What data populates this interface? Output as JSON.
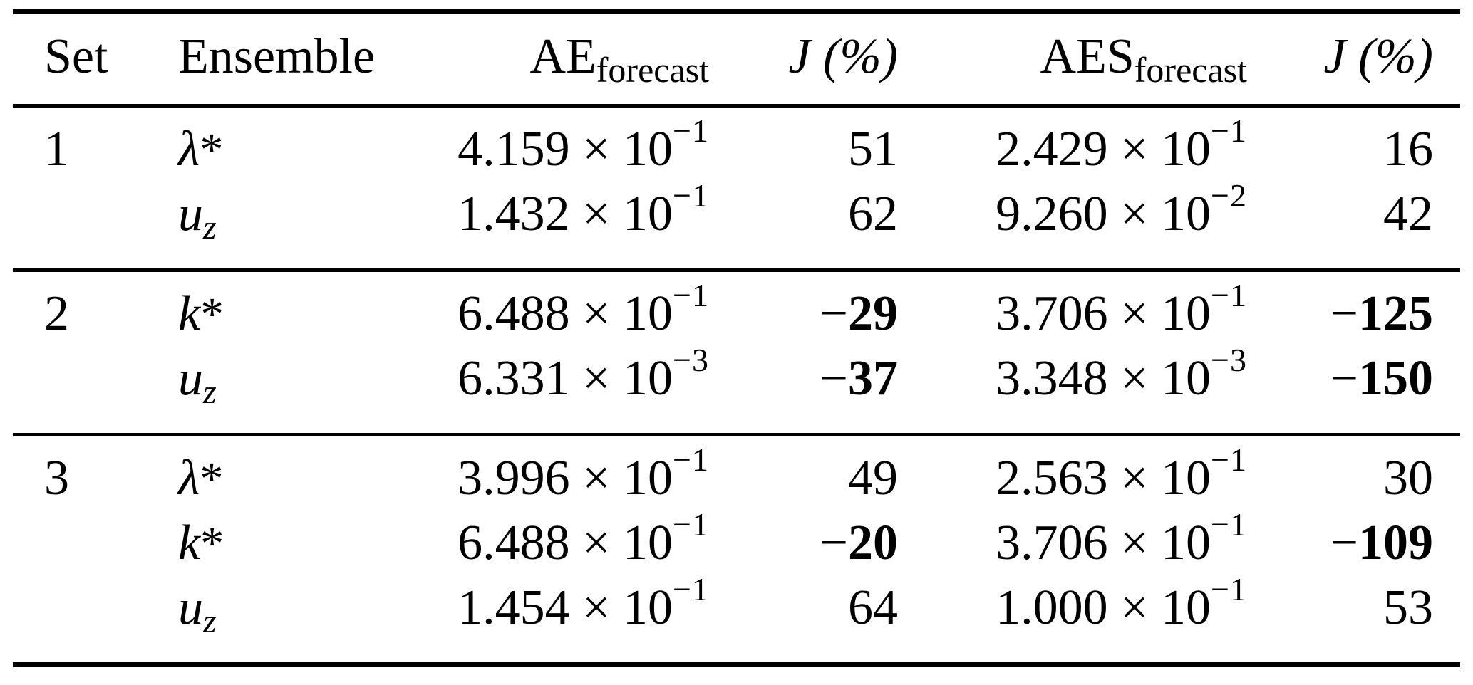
{
  "colors": {
    "background": "#ffffff",
    "text": "#000000",
    "rule": "#000000"
  },
  "table": {
    "columns": {
      "set": "Set",
      "ensemble": "Ensemble",
      "ae": {
        "base": "AE",
        "sub": "forecast"
      },
      "j_ae": "J (%)",
      "aes": {
        "base": "AES",
        "sub": "forecast"
      },
      "j_aes": "J (%)"
    },
    "groups": [
      {
        "set": "1",
        "rows": [
          {
            "ensemble": {
              "symbol": "λ",
              "sup": "*",
              "sub": ""
            },
            "ae": {
              "base": "4.159 × 10",
              "exp": "−1"
            },
            "j_ae": {
              "sign": "",
              "value": "51",
              "bold": false
            },
            "aes": {
              "base": "2.429 × 10",
              "exp": "−1"
            },
            "j_aes": {
              "sign": "",
              "value": "16",
              "bold": false
            }
          },
          {
            "ensemble": {
              "symbol": "u",
              "sup": "",
              "sub": "z"
            },
            "ae": {
              "base": "1.432 × 10",
              "exp": "−1"
            },
            "j_ae": {
              "sign": "",
              "value": "62",
              "bold": false
            },
            "aes": {
              "base": "9.260 × 10",
              "exp": "−2"
            },
            "j_aes": {
              "sign": "",
              "value": "42",
              "bold": false
            }
          }
        ]
      },
      {
        "set": "2",
        "rows": [
          {
            "ensemble": {
              "symbol": "k",
              "sup": "*",
              "sub": ""
            },
            "ae": {
              "base": "6.488 × 10",
              "exp": "−1"
            },
            "j_ae": {
              "sign": "−",
              "value": "29",
              "bold": true
            },
            "aes": {
              "base": "3.706 × 10",
              "exp": "−1"
            },
            "j_aes": {
              "sign": "−",
              "value": "125",
              "bold": true
            }
          },
          {
            "ensemble": {
              "symbol": "u",
              "sup": "",
              "sub": "z"
            },
            "ae": {
              "base": "6.331 × 10",
              "exp": "−3"
            },
            "j_ae": {
              "sign": "−",
              "value": "37",
              "bold": true
            },
            "aes": {
              "base": "3.348 × 10",
              "exp": "−3"
            },
            "j_aes": {
              "sign": "−",
              "value": "150",
              "bold": true
            }
          }
        ]
      },
      {
        "set": "3",
        "rows": [
          {
            "ensemble": {
              "symbol": "λ",
              "sup": "*",
              "sub": ""
            },
            "ae": {
              "base": "3.996 × 10",
              "exp": "−1"
            },
            "j_ae": {
              "sign": "",
              "value": "49",
              "bold": false
            },
            "aes": {
              "base": "2.563 × 10",
              "exp": "−1"
            },
            "j_aes": {
              "sign": "",
              "value": "30",
              "bold": false
            }
          },
          {
            "ensemble": {
              "symbol": "k",
              "sup": "*",
              "sub": ""
            },
            "ae": {
              "base": "6.488 × 10",
              "exp": "−1"
            },
            "j_ae": {
              "sign": "−",
              "value": "20",
              "bold": true
            },
            "aes": {
              "base": "3.706 × 10",
              "exp": "−1"
            },
            "j_aes": {
              "sign": "−",
              "value": "109",
              "bold": true
            }
          },
          {
            "ensemble": {
              "symbol": "u",
              "sup": "",
              "sub": "z"
            },
            "ae": {
              "base": "1.454 × 10",
              "exp": "−1"
            },
            "j_ae": {
              "sign": "",
              "value": "64",
              "bold": false
            },
            "aes": {
              "base": "1.000 × 10",
              "exp": "−1"
            },
            "j_aes": {
              "sign": "",
              "value": "53",
              "bold": false
            }
          }
        ]
      }
    ]
  }
}
